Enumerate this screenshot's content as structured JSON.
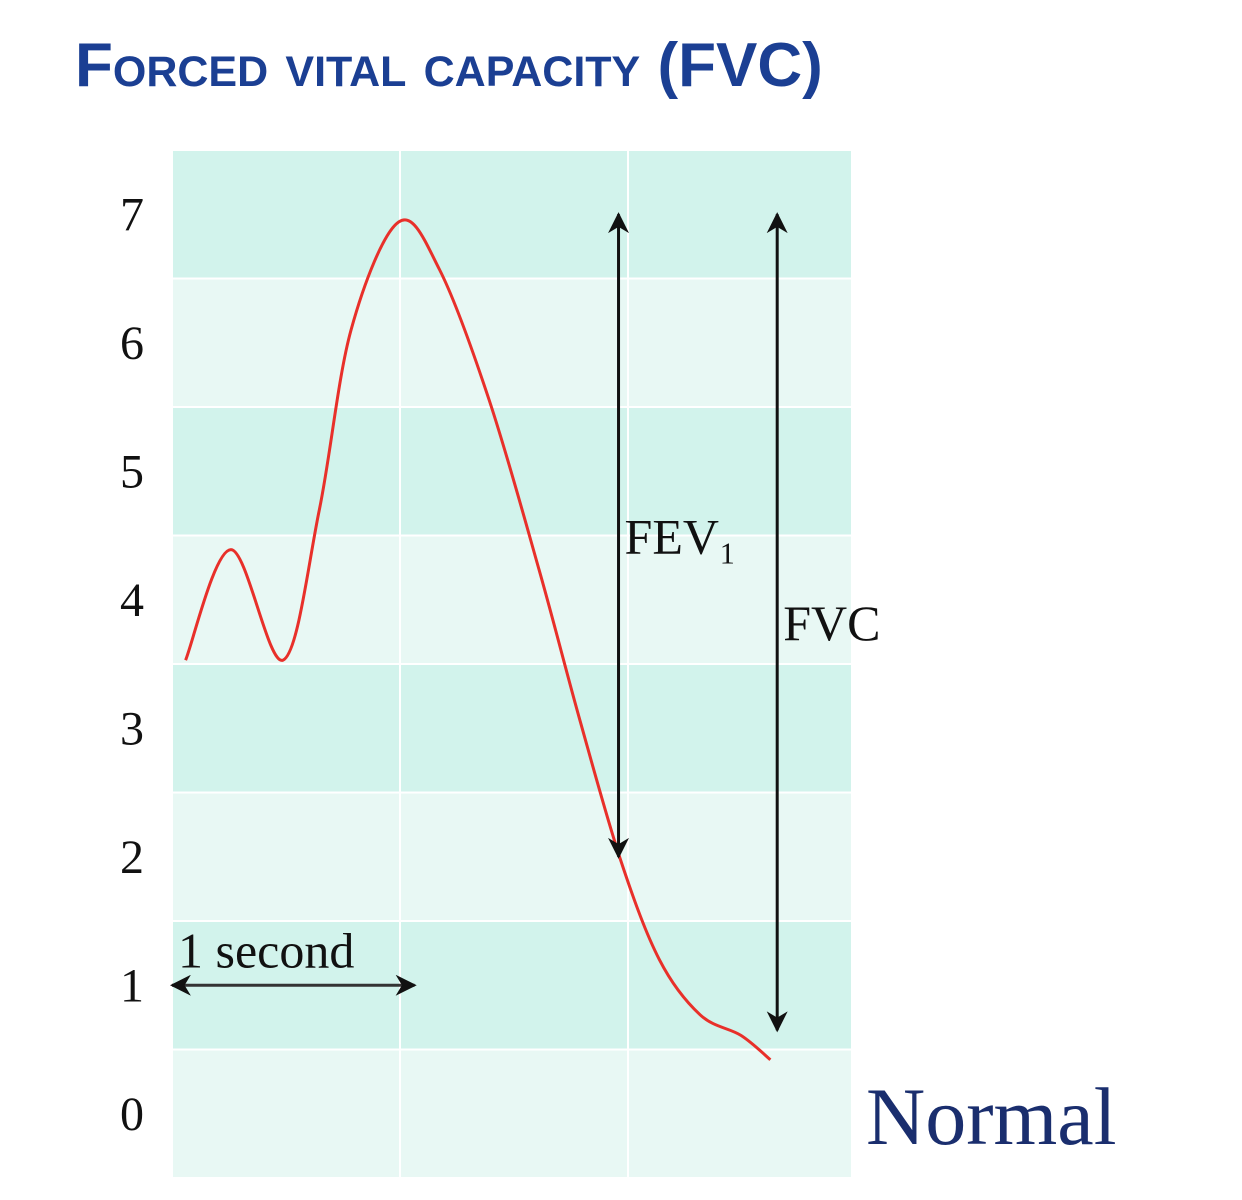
{
  "chart_data": {
    "type": "line",
    "title": "Forced vital capacity (FVC)",
    "caption": "Normal",
    "xlim": [
      0,
      3
    ],
    "ylim": [
      -0.5,
      7.5
    ],
    "yticks": [
      0,
      1,
      2,
      3,
      4,
      5,
      6,
      7
    ],
    "band_colors": [
      "#e8f8f4",
      "#d2f3ec"
    ],
    "series": [
      {
        "color": "#e8302a",
        "x": [
          0.06,
          0.26,
          0.49,
          0.65,
          0.79,
          1.0,
          1.18,
          1.4,
          1.62,
          1.8,
          1.98,
          2.15,
          2.33,
          2.51,
          2.64
        ],
        "values": [
          3.53,
          4.39,
          3.53,
          4.7,
          6.1,
          6.94,
          6.57,
          5.55,
          4.23,
          3.06,
          1.97,
          1.2,
          0.77,
          0.61,
          0.42
        ]
      }
    ],
    "annotations": [
      {
        "label": "FEV₁",
        "x": 1.97,
        "from": 7,
        "to": 2
      },
      {
        "label": "FVC",
        "x": 2.67,
        "from": 7,
        "to": 0.65
      },
      {
        "label": "1 second",
        "y": 1,
        "from": 0,
        "to": 1.07
      }
    ]
  }
}
